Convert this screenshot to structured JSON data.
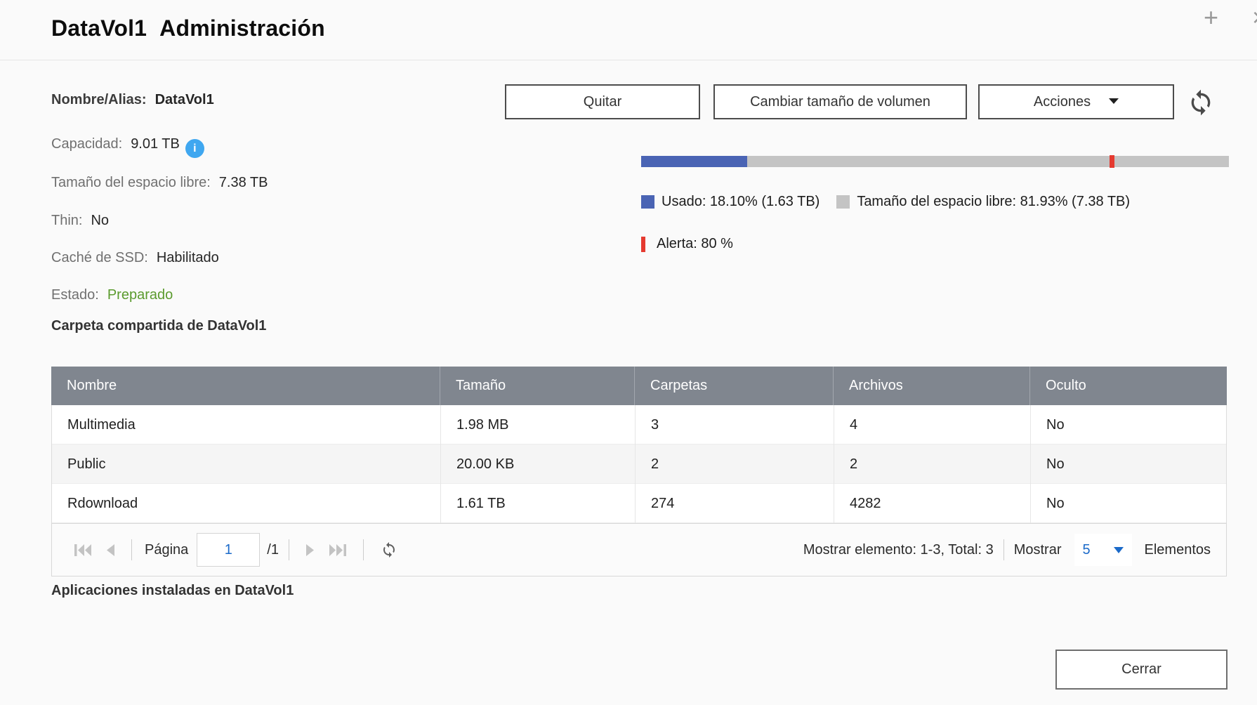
{
  "window": {
    "title_volume": "DataVol1",
    "title_section": "Administración",
    "add_icon": "+",
    "close_icon": "×"
  },
  "info": {
    "name_label": "Nombre/Alias:",
    "name_value": "DataVol1",
    "capacity_label": "Capacidad:",
    "capacity_value": "9.01 TB",
    "info_icon": "i",
    "free_label": "Tamaño del espacio libre:",
    "free_value": "7.38 TB",
    "thin_label": "Thin:",
    "thin_value": "No",
    "ssd_label": "Caché de SSD:",
    "ssd_value": "Habilitado",
    "status_label": "Estado:",
    "status_value": "Preparado",
    "status_color": "#5b9b2e"
  },
  "toolbar": {
    "remove_label": "Quitar",
    "resize_label": "Cambiar tamaño de volumen",
    "actions_label": "Acciones"
  },
  "usage": {
    "used_percent": 18.1,
    "free_percent": 81.93,
    "alert_percent": 80,
    "used_label": "Usado: 18.10% (1.63 TB)",
    "free_label": "Tamaño del espacio libre: 81.93% (7.38 TB)",
    "alert_label": "Alerta: 80 %",
    "used_color": "#4a64b4",
    "free_color": "#c4c4c4",
    "alert_color": "#e53a30"
  },
  "shared_folders": {
    "heading": "Carpeta compartida de DataVol1",
    "columns": [
      "Nombre",
      "Tamaño",
      "Carpetas",
      "Archivos",
      "Oculto"
    ],
    "rows": [
      [
        "Multimedia",
        "1.98 MB",
        "3",
        "4",
        "No"
      ],
      [
        "Public",
        "20.00 KB",
        "2",
        "2",
        "No"
      ],
      [
        "Rdownload",
        "1.61 TB",
        "274",
        "4282",
        "No"
      ]
    ]
  },
  "pagination": {
    "page_label": "Página",
    "page_value": "1",
    "page_total": "/1",
    "status": "Mostrar elemento: 1-3, Total: 3",
    "show_label": "Mostrar",
    "page_size": "5",
    "items_label": "Elementos"
  },
  "apps": {
    "heading": "Aplicaciones instaladas en DataVol1"
  },
  "footer": {
    "close_label": "Cerrar"
  }
}
